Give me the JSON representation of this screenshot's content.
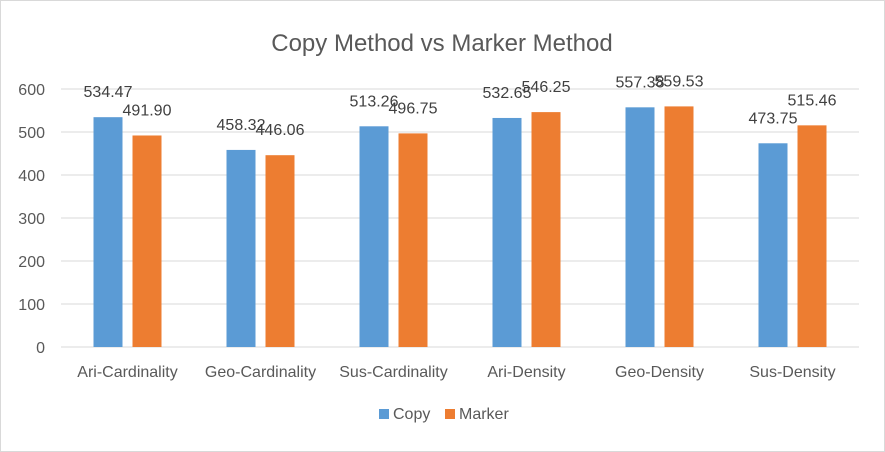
{
  "chart_data": {
    "type": "bar",
    "title": "Copy Method vs Marker Method",
    "categories": [
      "Ari-Cardinality",
      "Geo-Cardinality",
      "Sus-Cardinality",
      "Ari-Density",
      "Geo-Density",
      "Sus-Density"
    ],
    "series": [
      {
        "name": "Copy",
        "color": "#5b9bd5",
        "values": [
          534.47,
          458.32,
          513.26,
          532.65,
          557.38,
          473.75
        ],
        "labels": [
          "534.47",
          "458.32",
          "513.26",
          "532.65",
          "557.38",
          "473.75"
        ]
      },
      {
        "name": "Marker",
        "color": "#ed7d31",
        "values": [
          491.9,
          446.06,
          496.75,
          546.25,
          559.53,
          515.46
        ],
        "labels": [
          "491.90",
          "446.06",
          "496.75",
          "546.25",
          "559.53",
          "515.46"
        ]
      }
    ],
    "yticks": [
      "0",
      "100",
      "200",
      "300",
      "400",
      "500",
      "600"
    ],
    "ylim": [
      0,
      600
    ],
    "xlabel": "",
    "ylabel": "",
    "grid": true,
    "legend_position": "bottom"
  }
}
